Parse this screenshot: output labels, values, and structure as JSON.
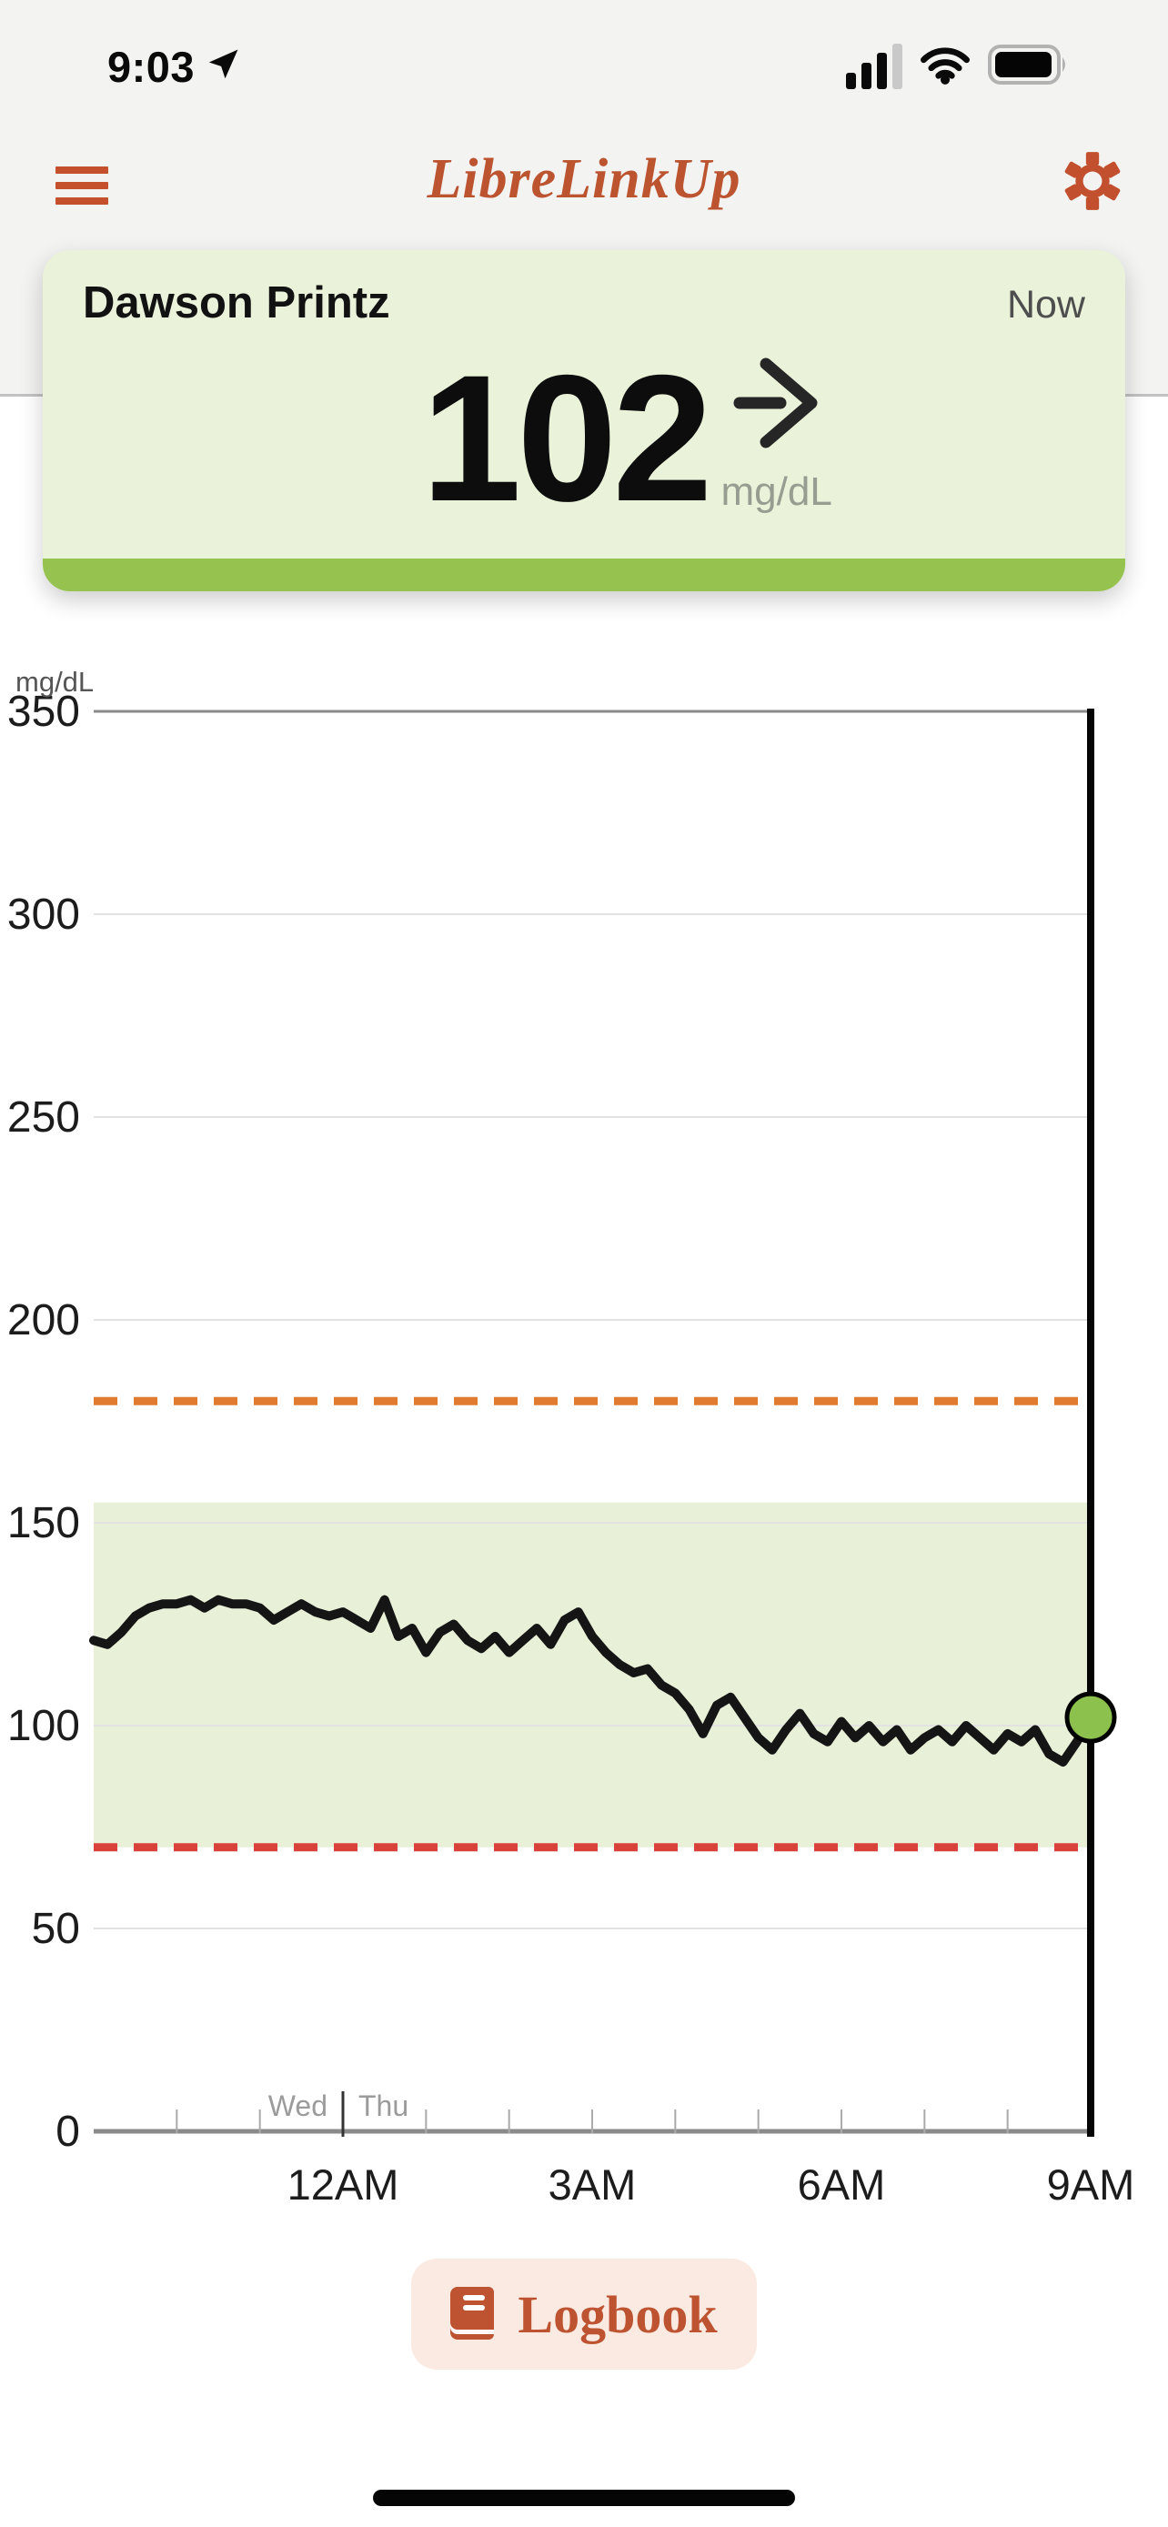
{
  "status_bar": {
    "time": "9:03"
  },
  "header": {
    "title": "LibreLinkUp"
  },
  "patient_card": {
    "name": "Dawson Printz",
    "timestamp": "Now",
    "glucose_value": "102",
    "unit": "mg/dL",
    "trend": "steady-right",
    "status_strip_color": "#96c350"
  },
  "logbook_button": {
    "label": "Logbook"
  },
  "colors": {
    "brand_orange": "#c0512f",
    "card_green": "#eaf2da",
    "strip_green": "#96c350",
    "band_green": "#e9f0d8",
    "high_alarm_orange": "#e07b2f",
    "low_alarm_red": "#d8423b",
    "trace_black": "#151515",
    "dot_green": "#8dc14e"
  },
  "chart_data": {
    "type": "line",
    "title": "",
    "ylabel": "mg/dL",
    "ylim": [
      0,
      350
    ],
    "yticks": [
      0,
      50,
      100,
      150,
      200,
      250,
      300,
      350
    ],
    "grid": "horizontal",
    "x_axis": {
      "start": "9PM",
      "end": "9AM",
      "hours": 12,
      "minor_tick_every_hours": 1,
      "labels": [
        {
          "label": "12AM",
          "hour": 3
        },
        {
          "label": "3AM",
          "hour": 6
        },
        {
          "label": "6AM",
          "hour": 9
        },
        {
          "label": "9AM",
          "hour": 12
        }
      ]
    },
    "day_boundary": {
      "left_label": "Wed",
      "right_label": "Thu",
      "hour": 3
    },
    "target_range": {
      "low": 70,
      "high": 155,
      "color": "#e9f0d8"
    },
    "alarm_lines": [
      {
        "name": "high-alarm",
        "value": 180,
        "color": "#e07b2f",
        "style": "dashed"
      },
      {
        "name": "low-alarm",
        "value": 70,
        "color": "#d8423b",
        "style": "dashed"
      }
    ],
    "series": [
      {
        "name": "glucose_mg_dl",
        "color": "#151515",
        "interval_minutes": 10,
        "values": [
          121,
          120,
          123,
          127,
          129,
          130,
          130,
          131,
          129,
          131,
          130,
          130,
          129,
          126,
          128,
          130,
          128,
          127,
          128,
          126,
          124,
          131,
          122,
          124,
          118,
          123,
          125,
          121,
          119,
          122,
          118,
          121,
          124,
          120,
          126,
          128,
          122,
          118,
          115,
          113,
          114,
          110,
          108,
          104,
          98,
          105,
          107,
          102,
          97,
          94,
          99,
          103,
          98,
          96,
          101,
          97,
          100,
          96,
          99,
          94,
          97,
          99,
          96,
          100,
          97,
          94,
          98,
          96,
          99,
          93,
          91,
          96,
          102
        ]
      }
    ],
    "endpoint": {
      "value": 102,
      "marker_color": "#8dc14e"
    },
    "legend_position": "none"
  }
}
